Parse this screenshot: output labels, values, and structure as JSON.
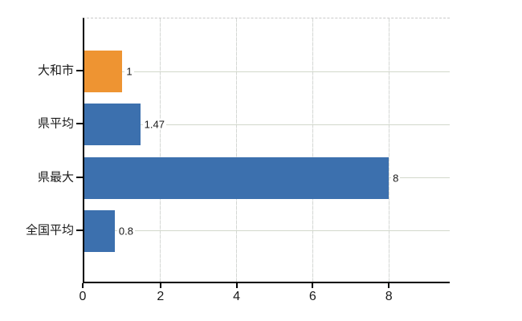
{
  "chart_data": {
    "type": "bar",
    "orientation": "horizontal",
    "title": "",
    "xlabel": "",
    "ylabel": "",
    "categories": [
      "大和市",
      "県平均",
      "県最大",
      "全国平均"
    ],
    "values": [
      1,
      1.47,
      8,
      0.8
    ],
    "value_labels": [
      "1",
      "1.47",
      "8",
      "0.8"
    ],
    "bar_colors": [
      "#ee9432",
      "#3c70ae",
      "#3c70ae",
      "#3c70ae"
    ],
    "xlim": [
      0,
      9.6
    ],
    "xticks": [
      0,
      2,
      4,
      6,
      8
    ],
    "xtick_labels": [
      "0",
      "2",
      "4",
      "6",
      "8"
    ],
    "grid": true,
    "legend": false
  },
  "colors": {
    "accent_orange": "#ee9432",
    "accent_blue": "#3c70ae",
    "horizontal_gridline": "#d2d8cb",
    "vertical_gridline": "#d4d7d4",
    "top_border": "#c9c9c9",
    "axis": "#000000",
    "text": "#1a1a1a",
    "background": "#ffffff"
  }
}
